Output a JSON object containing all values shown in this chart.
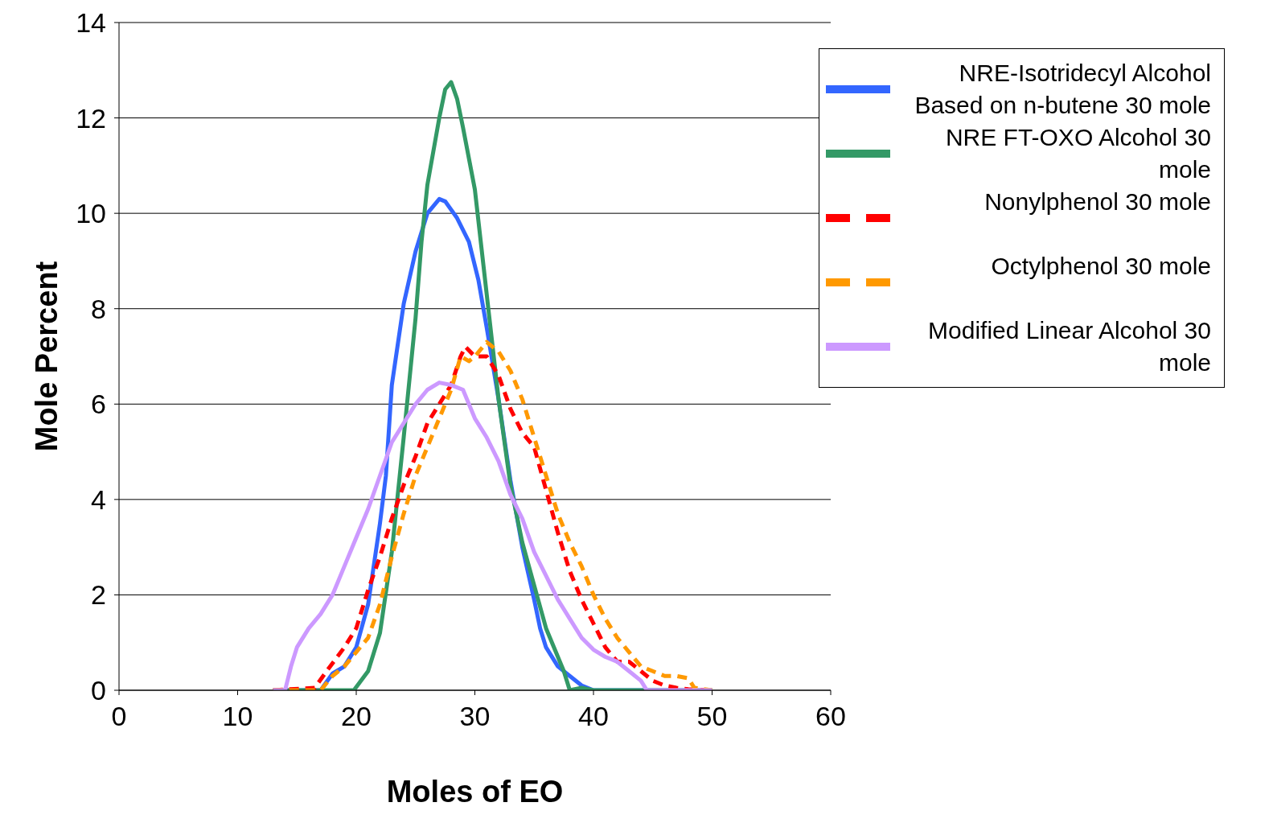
{
  "chart_data": {
    "type": "line",
    "xlabel": "Moles of EO",
    "ylabel": "Mole Percent",
    "xlim": [
      0,
      60
    ],
    "xticks": [
      0,
      10,
      20,
      30,
      40,
      50,
      60
    ],
    "ylim": [
      0,
      14
    ],
    "yticks": [
      0,
      2,
      4,
      6,
      8,
      10,
      12,
      14
    ],
    "grid": "y",
    "legend": "top right",
    "marker": "none",
    "series": [
      {
        "name": "NRE-Isotridecyl Alcohol Based on n-butene 30 mole",
        "color": "#3366ff",
        "line_style": "solid",
        "x": [
          13,
          17,
          18,
          19,
          20,
          21,
          22,
          22.5,
          23,
          24,
          25,
          25.5,
          26,
          27,
          27.5,
          28.5,
          29.5,
          30.3,
          31,
          32,
          33,
          34,
          35,
          35.5,
          36,
          37,
          38,
          39,
          40,
          50
        ],
        "values": [
          0,
          0,
          0.35,
          0.5,
          0.9,
          1.8,
          3.5,
          4.5,
          6.4,
          8.1,
          9.2,
          9.6,
          10.0,
          10.3,
          10.25,
          9.9,
          9.4,
          8.6,
          7.6,
          6.1,
          4.4,
          3.0,
          1.9,
          1.3,
          0.9,
          0.5,
          0.3,
          0.1,
          0,
          0
        ]
      },
      {
        "name": "NRE FT-OXO Alcohol 30 mole",
        "color": "#339966",
        "line_style": "solid",
        "x": [
          13,
          19.8,
          21,
          22,
          23,
          24,
          25,
          25.5,
          26,
          27,
          27.5,
          28,
          28.5,
          29,
          30,
          31,
          32,
          33,
          34,
          35,
          36,
          37,
          37.5,
          38,
          39,
          40,
          50
        ],
        "values": [
          0,
          0,
          0.4,
          1.2,
          2.9,
          5.3,
          7.8,
          9.4,
          10.6,
          12.0,
          12.6,
          12.75,
          12.4,
          11.8,
          10.5,
          8.3,
          6.1,
          4.3,
          3.1,
          2.2,
          1.3,
          0.7,
          0.4,
          0,
          0.05,
          0,
          0
        ]
      },
      {
        "name": "Nonylphenol 30 mole",
        "color": "#ff0000",
        "line_style": "dashed",
        "x": [
          13,
          16.5,
          17.5,
          19,
          20,
          21,
          22,
          23,
          24,
          25,
          26,
          27,
          28,
          28.8,
          29.2,
          30,
          31,
          32,
          33,
          34,
          35,
          36,
          37,
          38,
          39,
          40,
          41,
          42,
          43,
          44,
          45,
          46,
          47,
          48,
          50
        ],
        "values": [
          0,
          0.05,
          0.4,
          0.9,
          1.3,
          2.1,
          2.8,
          3.6,
          4.3,
          4.9,
          5.6,
          6.0,
          6.4,
          7.0,
          7.2,
          7.0,
          7.0,
          6.6,
          5.9,
          5.4,
          5.1,
          4.2,
          3.3,
          2.5,
          1.9,
          1.4,
          0.9,
          0.6,
          0.6,
          0.4,
          0.2,
          0.1,
          0.05,
          0.02,
          0
        ]
      },
      {
        "name": "Octylphenol 30 mole",
        "color": "#ff9900",
        "line_style": "dashed",
        "x": [
          13,
          17,
          18,
          19,
          20,
          21,
          22,
          23,
          24,
          25,
          26,
          27,
          28,
          28.8,
          29.5,
          30,
          31,
          32,
          33,
          34,
          35,
          36,
          37,
          38,
          39,
          40,
          41,
          42,
          43,
          44,
          45,
          46,
          47,
          48,
          48.5,
          50
        ],
        "values": [
          0,
          0,
          0.3,
          0.5,
          0.8,
          1.1,
          1.8,
          2.8,
          3.7,
          4.5,
          5.1,
          5.7,
          6.3,
          7.0,
          6.9,
          7.0,
          7.3,
          7.1,
          6.7,
          6.1,
          5.3,
          4.5,
          3.7,
          3.1,
          2.6,
          2.0,
          1.5,
          1.1,
          0.8,
          0.5,
          0.4,
          0.3,
          0.3,
          0.25,
          0.05,
          0
        ]
      },
      {
        "name": "Modified Linear Alcohol 30 mole",
        "color": "#cc99ff",
        "line_style": "solid",
        "x": [
          13,
          14,
          14.5,
          15,
          16,
          17,
          18,
          19,
          20,
          21,
          22,
          23,
          24,
          25,
          26,
          27,
          28,
          29,
          30,
          31,
          32,
          33,
          34,
          35,
          36,
          37,
          38,
          39,
          40,
          41,
          42,
          43,
          44,
          44.5,
          50
        ],
        "values": [
          0,
          0,
          0.5,
          0.9,
          1.3,
          1.6,
          2.0,
          2.6,
          3.2,
          3.8,
          4.5,
          5.2,
          5.6,
          6.0,
          6.3,
          6.45,
          6.4,
          6.3,
          5.7,
          5.3,
          4.8,
          4.1,
          3.6,
          2.9,
          2.4,
          1.9,
          1.5,
          1.1,
          0.85,
          0.7,
          0.6,
          0.4,
          0.2,
          0,
          0
        ]
      }
    ]
  }
}
